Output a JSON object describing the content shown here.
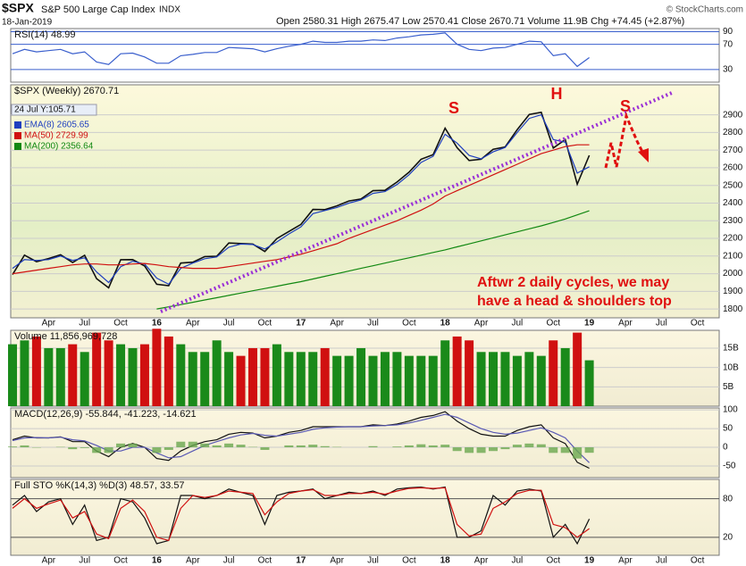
{
  "header": {
    "symbol": "$SPX",
    "name": "S&P 500 Large Cap Index",
    "exchange": "INDX",
    "date": "18-Jan-2019",
    "quote": "Open 2580.31  High 2675.47  Low 2570.41  Close 2670.71  Volume 11.9B  Chg +74.45 (+2.87%)",
    "credit": "© StockCharts.com"
  },
  "chart_data": [
    {
      "type": "line",
      "title": "RSI(14) 48.99",
      "ylim": [
        10,
        95
      ],
      "yticks": [
        90,
        70,
        30
      ],
      "series": [
        {
          "name": "RSI(14)",
          "color": "#3a5fcd",
          "values": [
            55,
            62,
            58,
            60,
            62,
            55,
            58,
            42,
            38,
            55,
            56,
            50,
            40,
            40,
            52,
            54,
            57,
            57,
            65,
            64,
            63,
            58,
            63,
            67,
            70,
            75,
            73,
            73,
            75,
            75,
            77,
            76,
            80,
            82,
            85,
            86,
            88,
            70,
            62,
            60,
            64,
            65,
            70,
            75,
            74,
            52,
            55,
            35,
            48.99,
            null,
            null,
            null,
            null,
            null,
            null,
            null,
            null,
            null
          ]
        }
      ]
    },
    {
      "type": "line",
      "title": "$SPX (Weekly) 2670.71",
      "cursor_label": "24 Jul Y:105.71",
      "categories": [
        null,
        null,
        null,
        "Apr",
        null,
        null,
        "Jul",
        null,
        null,
        "Oct",
        null,
        null,
        "16",
        null,
        null,
        "Apr",
        null,
        null,
        "Jul",
        null,
        null,
        "Oct",
        null,
        null,
        "17",
        null,
        null,
        "Apr",
        null,
        null,
        "Jul",
        null,
        null,
        "Oct",
        null,
        null,
        "18",
        null,
        null,
        "Apr",
        null,
        null,
        "Jul",
        null,
        null,
        "Oct",
        null,
        null,
        "19",
        null,
        null,
        "Apr",
        null,
        null,
        "Jul",
        null,
        null,
        "Oct"
      ],
      "ylim": [
        1750,
        3070
      ],
      "yticks": [
        1800,
        1900,
        2000,
        2100,
        2200,
        2300,
        2400,
        2500,
        2600,
        2700,
        2800,
        2900
      ],
      "grid": true,
      "series": [
        {
          "name": "$SPX",
          "color": "#111111",
          "values": [
            1995,
            2105,
            2068,
            2086,
            2107,
            2063,
            2104,
            1972,
            1920,
            2079,
            2080,
            2044,
            1940,
            1932,
            2060,
            2065,
            2097,
            2099,
            2174,
            2171,
            2168,
            2126,
            2199,
            2239,
            2279,
            2364,
            2363,
            2384,
            2412,
            2423,
            2470,
            2472,
            2519,
            2575,
            2648,
            2674,
            2824,
            2714,
            2641,
            2648,
            2705,
            2718,
            2816,
            2902,
            2914,
            2712,
            2760,
            2507,
            2670.71,
            null,
            null,
            null,
            null,
            null,
            null,
            null,
            null,
            null
          ]
        },
        {
          "name": "EMA(8) 2605.65",
          "color": "#1f3fbf",
          "values": [
            2030,
            2080,
            2075,
            2080,
            2100,
            2075,
            2090,
            2010,
            1950,
            2040,
            2070,
            2055,
            1975,
            1940,
            2030,
            2060,
            2085,
            2095,
            2150,
            2168,
            2165,
            2140,
            2180,
            2225,
            2265,
            2340,
            2358,
            2375,
            2400,
            2418,
            2455,
            2465,
            2505,
            2560,
            2630,
            2665,
            2790,
            2740,
            2670,
            2650,
            2690,
            2715,
            2800,
            2880,
            2900,
            2760,
            2745,
            2570,
            2605.65,
            null,
            null,
            null,
            null,
            null,
            null,
            null,
            null,
            null
          ]
        },
        {
          "name": "MA(50) 2729.99",
          "color": "#d01010",
          "values": [
            2000,
            2010,
            2020,
            2030,
            2040,
            2050,
            2055,
            2055,
            2050,
            2050,
            2055,
            2058,
            2050,
            2040,
            2035,
            2030,
            2030,
            2030,
            2040,
            2050,
            2060,
            2070,
            2080,
            2095,
            2110,
            2130,
            2150,
            2170,
            2200,
            2225,
            2250,
            2275,
            2300,
            2330,
            2360,
            2395,
            2440,
            2470,
            2500,
            2530,
            2560,
            2590,
            2620,
            2650,
            2680,
            2700,
            2720,
            2730,
            2729.99,
            null,
            null,
            null,
            null,
            null,
            null,
            null,
            null,
            null
          ]
        },
        {
          "name": "MA(200) 2356.64",
          "color": "#118811",
          "values": [
            null,
            null,
            null,
            null,
            null,
            null,
            null,
            null,
            null,
            null,
            null,
            null,
            1800,
            1812,
            1825,
            1838,
            1851,
            1864,
            1877,
            1890,
            1903,
            1916,
            1929,
            1942,
            1955,
            1970,
            1985,
            2000,
            2015,
            2030,
            2045,
            2060,
            2075,
            2090,
            2105,
            2120,
            2135,
            2152,
            2169,
            2186,
            2203,
            2220,
            2237,
            2254,
            2271,
            2290,
            2310,
            2333,
            2356.64,
            null,
            null,
            null,
            null,
            null,
            null,
            null,
            null,
            null
          ]
        }
      ],
      "annotations": [
        "S",
        "H",
        "S",
        "Aftwr 2 daily cycles, we may",
        "have a head & shoulders top"
      ]
    },
    {
      "type": "bar",
      "title": "Volume 11,856,969,728",
      "ylim": [
        0,
        19600000000
      ],
      "yticks": [
        {
          "value": 15000000000,
          "label": "15B"
        },
        {
          "value": 10000000000,
          "label": "10B"
        },
        {
          "value": 5000000000,
          "label": "5B"
        }
      ],
      "values": [
        16000000000,
        17000000000,
        18000000000,
        15000000000,
        15000000000,
        16000000000,
        14000000000,
        19000000000,
        17000000000,
        16000000000,
        15000000000,
        16000000000,
        20000000000,
        18000000000,
        16000000000,
        14000000000,
        14000000000,
        17000000000,
        14000000000,
        13000000000,
        15000000000,
        15000000000,
        16000000000,
        14000000000,
        14000000000,
        14000000000,
        15000000000,
        13000000000,
        13000000000,
        15000000000,
        13000000000,
        14000000000,
        14000000000,
        13000000000,
        13000000000,
        13000000000,
        17000000000,
        18000000000,
        17000000000,
        14000000000,
        14000000000,
        14000000000,
        13000000000,
        14000000000,
        13000000000,
        17000000000,
        15000000000,
        19000000000,
        11856969728,
        null,
        null,
        null,
        null,
        null,
        null,
        null,
        null,
        null
      ],
      "colors": [
        "#1a8a1a",
        "#d01010"
      ]
    },
    {
      "type": "line",
      "title": "MACD(12,26,9) -55.844, -41.223, -14.621",
      "ylim": [
        -81,
        105
      ],
      "yticks": [
        100,
        50,
        0,
        -50
      ],
      "series": [
        {
          "name": "MACD",
          "color": "#111111",
          "values": [
            20,
            30,
            25,
            25,
            28,
            15,
            15,
            -10,
            -25,
            0,
            10,
            0,
            -30,
            -35,
            -10,
            5,
            15,
            20,
            35,
            40,
            38,
            25,
            30,
            40,
            45,
            55,
            55,
            55,
            55,
            55,
            60,
            58,
            62,
            70,
            80,
            85,
            95,
            70,
            50,
            35,
            30,
            30,
            45,
            55,
            60,
            25,
            10,
            -40,
            -55.844,
            null,
            null,
            null,
            null,
            null,
            null,
            null,
            null,
            null
          ]
        },
        {
          "name": "Signal",
          "color": "#5a5ab4",
          "values": [
            18,
            25,
            26,
            25,
            27,
            20,
            17,
            5,
            -10,
            -10,
            0,
            0,
            -15,
            -28,
            -25,
            -10,
            5,
            15,
            25,
            33,
            37,
            32,
            30,
            35,
            40,
            48,
            52,
            54,
            55,
            55,
            57,
            58,
            60,
            65,
            72,
            80,
            88,
            80,
            65,
            50,
            40,
            35,
            38,
            45,
            52,
            40,
            25,
            -10,
            -41.223,
            null,
            null,
            null,
            null,
            null,
            null,
            null,
            null,
            null
          ]
        },
        {
          "name": "Histogram",
          "type": "bar",
          "color": "#6aa84f",
          "values": [
            2,
            5,
            -1,
            0,
            1,
            -5,
            -2,
            -15,
            -15,
            10,
            10,
            0,
            -15,
            -7,
            15,
            15,
            10,
            5,
            10,
            7,
            1,
            -7,
            0,
            5,
            5,
            7,
            3,
            1,
            0,
            0,
            3,
            0,
            2,
            5,
            8,
            5,
            7,
            -10,
            -15,
            -15,
            -10,
            -5,
            7,
            10,
            8,
            -15,
            -15,
            -30,
            -14.621,
            null,
            null,
            null,
            null,
            null,
            null,
            null,
            null,
            null
          ]
        }
      ]
    },
    {
      "type": "line",
      "title": "Full STO %K(14,3) %D(3) 48.57, 33.57",
      "ylim": [
        -8,
        110
      ],
      "yticks": [
        80,
        20
      ],
      "series": [
        {
          "name": "%K",
          "color": "#111111",
          "values": [
            70,
            85,
            60,
            75,
            80,
            40,
            70,
            15,
            20,
            80,
            75,
            50,
            10,
            15,
            85,
            85,
            80,
            85,
            95,
            90,
            85,
            40,
            85,
            90,
            92,
            95,
            80,
            85,
            90,
            88,
            92,
            85,
            95,
            97,
            98,
            95,
            98,
            20,
            20,
            30,
            85,
            70,
            92,
            95,
            92,
            20,
            40,
            10,
            48.57,
            null,
            null,
            null,
            null,
            null,
            null,
            null,
            null,
            null
          ]
        },
        {
          "name": "%D",
          "color": "#d01010",
          "values": [
            65,
            80,
            65,
            72,
            78,
            50,
            60,
            25,
            18,
            65,
            78,
            60,
            20,
            15,
            65,
            85,
            82,
            85,
            92,
            90,
            88,
            55,
            75,
            88,
            92,
            94,
            85,
            85,
            88,
            88,
            90,
            87,
            92,
            96,
            97,
            96,
            97,
            40,
            22,
            25,
            65,
            75,
            88,
            93,
            93,
            40,
            35,
            20,
            33.57,
            null,
            null,
            null,
            null,
            null,
            null,
            null,
            null,
            null
          ]
        }
      ]
    }
  ]
}
